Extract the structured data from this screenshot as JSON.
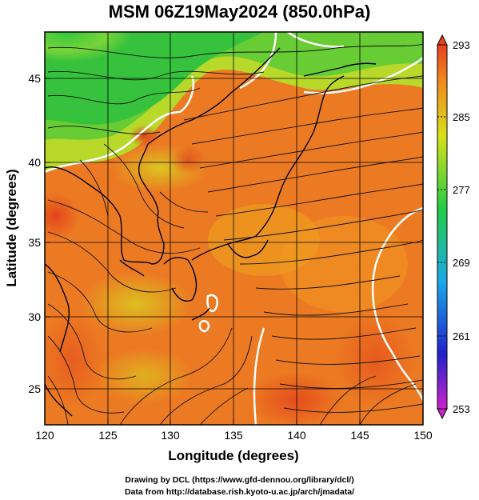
{
  "title": "MSM 06Z19May2024 (850.0hPa)",
  "xlabel": "Longitude (degrees)",
  "ylabel": "Latitude  (degrees)",
  "x_ticks": [
    "120",
    "125",
    "130",
    "135",
    "140",
    "145",
    "150"
  ],
  "y_ticks": [
    "25",
    "30",
    "35",
    "40",
    "45"
  ],
  "colorbar_ticks": [
    "293",
    "285",
    "277",
    "269",
    "261",
    "253"
  ],
  "footer_line1": "Drawing by DCL (https://www.gfd-dennou.org/library/dcl/)",
  "footer_line2": "Data from http://database.rish.kyoto-u.ac.jp/arch/jmadata/",
  "map_data": {
    "lon_range": [
      120,
      150
    ],
    "lat_range": [
      22.5,
      47.5
    ],
    "color_range": [
      253,
      293
    ],
    "grid": true,
    "field": "temperature",
    "overlay": "streamlines"
  },
  "colors": {
    "warm": "#e8501a",
    "orange": "#f08a1e",
    "yellow": "#d8e01a",
    "green": "#3cc840",
    "contour": "#ffffff"
  }
}
